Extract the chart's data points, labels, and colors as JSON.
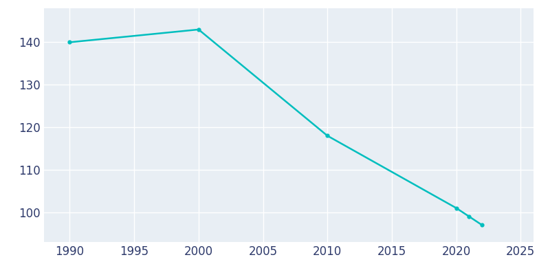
{
  "years": [
    1990,
    2000,
    2010,
    2020,
    2021,
    2022
  ],
  "population": [
    140,
    143,
    118,
    101,
    99,
    97
  ],
  "line_color": "#00BEBE",
  "marker": "o",
  "marker_size": 3.5,
  "bg_color": "#E8EEF4",
  "outer_bg": "#FFFFFF",
  "grid_color": "#FFFFFF",
  "xlim": [
    1988,
    2026
  ],
  "ylim": [
    93,
    148
  ],
  "xticks": [
    1990,
    1995,
    2000,
    2005,
    2010,
    2015,
    2020,
    2025
  ],
  "yticks": [
    100,
    110,
    120,
    130,
    140
  ],
  "tick_label_color": "#2E3A6B",
  "tick_label_fontsize": 12,
  "linewidth": 1.8
}
